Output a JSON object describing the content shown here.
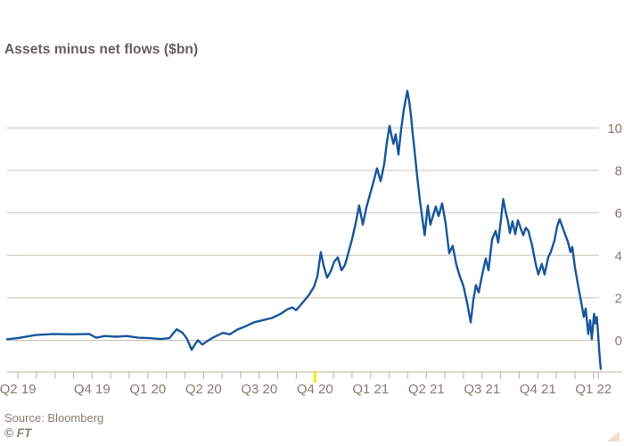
{
  "chart": {
    "subtitle": "Assets minus net flows ($bn)",
    "source": "Source: Bloomberg",
    "copyright": "© FT"
  },
  "colors": {
    "background": "#ffffff",
    "line": "#17579c",
    "gridline": "#ccc3b8",
    "axis": "#ccc3b8",
    "tick": "#c4bab0",
    "highlight_tick": "#ffe400",
    "axis_label": "#857b71",
    "subtitle_text": "#66605c",
    "source_text": "#8a8077",
    "corner_triangle": "#f2dfce"
  },
  "chart_data": {
    "type": "line",
    "title": "Assets minus net flows ($bn)",
    "xlabel": "",
    "ylabel": "",
    "grid": true,
    "legend": false,
    "y_ticks": [
      0,
      2,
      4,
      6,
      8,
      10
    ],
    "y_range": [
      -1.7,
      12.2
    ],
    "x_unit": "months since 2019-06-01",
    "x_tick_labels": [
      {
        "m": 0,
        "label": "Q2 19"
      },
      {
        "m": 4,
        "label": "Q4 19"
      },
      {
        "m": 7,
        "label": "Q1 20"
      },
      {
        "m": 10,
        "label": "Q2 20"
      },
      {
        "m": 13,
        "label": "Q3 20"
      },
      {
        "m": 16,
        "label": "Q4 20"
      },
      {
        "m": 19,
        "label": "Q1 21"
      },
      {
        "m": 22,
        "label": "Q2 21"
      },
      {
        "m": 25,
        "label": "Q3 21"
      },
      {
        "m": 28,
        "label": "Q4 21"
      },
      {
        "m": 31,
        "label": "Q1 22"
      }
    ],
    "x_minor_ticks": [
      0,
      1,
      2,
      3,
      4,
      5,
      6,
      7,
      8,
      9,
      10,
      11,
      12,
      13,
      14,
      15,
      16,
      17,
      18,
      19,
      20,
      21,
      22,
      23,
      24,
      25,
      26,
      27,
      28,
      29,
      30,
      31,
      31.25
    ],
    "highlight_tick": {
      "m": 16,
      "note": "highlighted tick at Q4 20"
    },
    "series": [
      {
        "name": "Assets minus net flows ($bn)",
        "points": [
          [
            -0.58,
            0.05
          ],
          [
            0,
            0.1
          ],
          [
            0.96,
            0.25
          ],
          [
            1.92,
            0.3
          ],
          [
            2.88,
            0.28
          ],
          [
            3.84,
            0.3
          ],
          [
            4.22,
            0.12
          ],
          [
            4.7,
            0.2
          ],
          [
            5.28,
            0.17
          ],
          [
            5.86,
            0.2
          ],
          [
            6.48,
            0.12
          ],
          [
            7.1,
            0.1
          ],
          [
            7.68,
            0.06
          ],
          [
            8.16,
            0.1
          ],
          [
            8.55,
            0.52
          ],
          [
            8.88,
            0.35
          ],
          [
            9.12,
            0.05
          ],
          [
            9.36,
            -0.45
          ],
          [
            9.55,
            -0.18
          ],
          [
            9.7,
            0.0
          ],
          [
            9.94,
            -0.2
          ],
          [
            10.18,
            -0.05
          ],
          [
            10.56,
            0.15
          ],
          [
            11.04,
            0.35
          ],
          [
            11.42,
            0.28
          ],
          [
            11.81,
            0.5
          ],
          [
            12.24,
            0.65
          ],
          [
            12.72,
            0.85
          ],
          [
            13.2,
            0.95
          ],
          [
            13.68,
            1.05
          ],
          [
            14.16,
            1.25
          ],
          [
            14.5,
            1.45
          ],
          [
            14.78,
            1.55
          ],
          [
            14.98,
            1.42
          ],
          [
            15.17,
            1.6
          ],
          [
            15.41,
            1.85
          ],
          [
            15.65,
            2.1
          ],
          [
            15.94,
            2.5
          ],
          [
            16.13,
            3.0
          ],
          [
            16.32,
            4.15
          ],
          [
            16.47,
            3.5
          ],
          [
            16.66,
            2.95
          ],
          [
            16.85,
            3.25
          ],
          [
            17.04,
            3.7
          ],
          [
            17.23,
            3.9
          ],
          [
            17.43,
            3.3
          ],
          [
            17.62,
            3.55
          ],
          [
            17.81,
            4.15
          ],
          [
            18.0,
            4.75
          ],
          [
            18.19,
            5.5
          ],
          [
            18.38,
            6.35
          ],
          [
            18.58,
            5.45
          ],
          [
            18.77,
            6.25
          ],
          [
            18.96,
            6.85
          ],
          [
            19.15,
            7.45
          ],
          [
            19.34,
            8.1
          ],
          [
            19.54,
            7.5
          ],
          [
            19.73,
            8.3
          ],
          [
            19.87,
            9.3
          ],
          [
            20.02,
            10.1
          ],
          [
            20.16,
            9.5
          ],
          [
            20.23,
            9.25
          ],
          [
            20.35,
            9.7
          ],
          [
            20.5,
            8.75
          ],
          [
            20.64,
            9.9
          ],
          [
            20.79,
            10.9
          ],
          [
            20.98,
            11.75
          ],
          [
            21.07,
            11.3
          ],
          [
            21.17,
            10.6
          ],
          [
            21.26,
            9.8
          ],
          [
            21.36,
            9.0
          ],
          [
            21.5,
            7.8
          ],
          [
            21.65,
            6.6
          ],
          [
            21.79,
            5.7
          ],
          [
            21.91,
            4.95
          ],
          [
            22.08,
            6.35
          ],
          [
            22.22,
            5.45
          ],
          [
            22.37,
            5.9
          ],
          [
            22.51,
            6.3
          ],
          [
            22.66,
            5.85
          ],
          [
            22.85,
            6.45
          ],
          [
            23.04,
            5.5
          ],
          [
            23.23,
            4.1
          ],
          [
            23.42,
            4.45
          ],
          [
            23.62,
            3.55
          ],
          [
            23.81,
            3.0
          ],
          [
            24.0,
            2.55
          ],
          [
            24.19,
            1.8
          ],
          [
            24.39,
            0.85
          ],
          [
            24.53,
            1.9
          ],
          [
            24.67,
            2.6
          ],
          [
            24.82,
            2.25
          ],
          [
            25.01,
            3.1
          ],
          [
            25.2,
            3.85
          ],
          [
            25.35,
            3.3
          ],
          [
            25.54,
            4.75
          ],
          [
            25.73,
            5.15
          ],
          [
            25.87,
            4.6
          ],
          [
            26.02,
            5.7
          ],
          [
            26.14,
            6.65
          ],
          [
            26.26,
            6.1
          ],
          [
            26.4,
            5.6
          ],
          [
            26.5,
            5.05
          ],
          [
            26.64,
            5.6
          ],
          [
            26.79,
            5.0
          ],
          [
            26.93,
            5.65
          ],
          [
            27.07,
            5.3
          ],
          [
            27.22,
            4.95
          ],
          [
            27.36,
            5.3
          ],
          [
            27.5,
            5.15
          ],
          [
            27.7,
            4.45
          ],
          [
            27.89,
            3.6
          ],
          [
            28.03,
            3.1
          ],
          [
            28.22,
            3.6
          ],
          [
            28.37,
            3.1
          ],
          [
            28.56,
            3.9
          ],
          [
            28.7,
            4.15
          ],
          [
            28.9,
            4.7
          ],
          [
            29.04,
            5.35
          ],
          [
            29.18,
            5.7
          ],
          [
            29.33,
            5.35
          ],
          [
            29.47,
            5.0
          ],
          [
            29.62,
            4.65
          ],
          [
            29.76,
            4.15
          ],
          [
            29.86,
            4.4
          ],
          [
            30.0,
            3.45
          ],
          [
            30.14,
            2.75
          ],
          [
            30.34,
            1.8
          ],
          [
            30.48,
            1.1
          ],
          [
            30.58,
            1.5
          ],
          [
            30.72,
            0.3
          ],
          [
            30.82,
            0.95
          ],
          [
            30.91,
            0.05
          ],
          [
            31.03,
            1.25
          ],
          [
            31.1,
            0.8
          ],
          [
            31.18,
            1.1
          ],
          [
            31.25,
            0.35
          ],
          [
            31.32,
            -0.6
          ],
          [
            31.39,
            -1.35
          ]
        ]
      }
    ]
  }
}
